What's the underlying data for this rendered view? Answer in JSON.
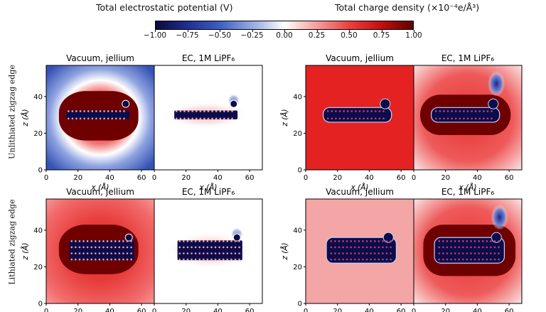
{
  "headers": {
    "left": "Total electrostatic potential (V)",
    "right": "Total charge density (×10⁻⁴e/Å³)"
  },
  "colorbar": {
    "ticks": [
      "−1.00",
      "−0.75",
      "−0.50",
      "−0.25",
      "0.00",
      "0.25",
      "0.50",
      "0.75",
      "1.00"
    ],
    "range": [
      -1.0,
      1.0
    ],
    "colormap": "seismic"
  },
  "row_labels": [
    "Unlithiated zigzag edge",
    "Lithiated zigzag edge"
  ],
  "chart_data": {
    "type": "heatmap",
    "xlabel": "x (Å)",
    "ylabel": "z (Å)",
    "xticks": [
      0,
      20,
      40,
      60
    ],
    "yticks": [
      0,
      20,
      40
    ],
    "xlim": [
      0,
      68
    ],
    "ylim": [
      0,
      57
    ],
    "panels": [
      {
        "row": "Unlithiated zigzag edge",
        "quantity": "Total electrostatic potential (V)",
        "title": "Vacuum, jellium"
      },
      {
        "row": "Unlithiated zigzag edge",
        "quantity": "Total electrostatic potential (V)",
        "title": "EC, 1M LiPF₆"
      },
      {
        "row": "Unlithiated zigzag edge",
        "quantity": "Total charge density (×10⁻⁴e/Å³)",
        "title": "Vacuum, jellium"
      },
      {
        "row": "Unlithiated zigzag edge",
        "quantity": "Total charge density (×10⁻⁴e/Å³)",
        "title": "EC, 1M LiPF₆"
      },
      {
        "row": "Lithiated zigzag edge",
        "quantity": "Total electrostatic potential (V)",
        "title": "Vacuum, jellium"
      },
      {
        "row": "Lithiated zigzag edge",
        "quantity": "Total electrostatic potential (V)",
        "title": "EC, 1M LiPF₆"
      },
      {
        "row": "Lithiated zigzag edge",
        "quantity": "Total charge density (×10⁻⁴e/Å³)",
        "title": "Vacuum, jellium"
      },
      {
        "row": "Lithiated zigzag edge",
        "quantity": "Total charge density (×10⁻⁴e/Å³)",
        "title": "EC, 1M LiPF₆"
      }
    ]
  },
  "colors": {
    "deep_red": "#6e0000",
    "red": "#e52222",
    "pale_red": "#f4a5a5",
    "blue": "#3a56b8",
    "navy": "#0c0c4c",
    "white": "#ffffff"
  }
}
